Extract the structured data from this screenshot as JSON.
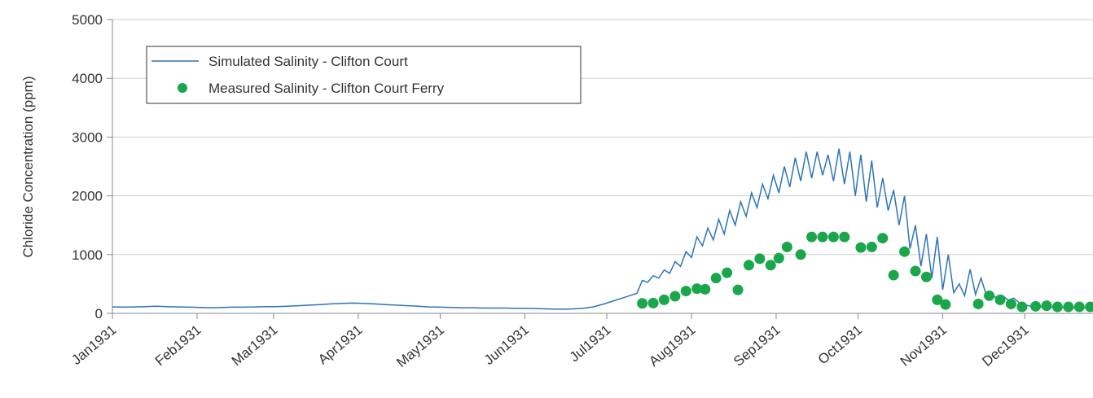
{
  "chart_data": {
    "type": "line",
    "y_label": "Chloride Concentration (ppm)",
    "xlim": [
      0,
      359
    ],
    "xticks": [
      {
        "value": 0,
        "label": "Jan1931"
      },
      {
        "value": 31,
        "label": "Feb1931"
      },
      {
        "value": 59,
        "label": "Mar1931"
      },
      {
        "value": 90,
        "label": "Apr1931"
      },
      {
        "value": 120,
        "label": "May1931"
      },
      {
        "value": 151,
        "label": "Jun1931"
      },
      {
        "value": 181,
        "label": "Jul1931"
      },
      {
        "value": 212,
        "label": "Aug1931"
      },
      {
        "value": 243,
        "label": "Sep1931"
      },
      {
        "value": 273,
        "label": "Oct1931"
      },
      {
        "value": 304,
        "label": "Nov1931"
      },
      {
        "value": 334,
        "label": "Dec1931"
      }
    ],
    "ylim": [
      0,
      5000
    ],
    "yticks": [
      0,
      1000,
      2000,
      3000,
      4000,
      5000
    ],
    "grid": true,
    "legend": "upper left",
    "series": [
      {
        "name": "Simulated Salinity - Clifton Court",
        "type": "line",
        "color": "#2e75b6",
        "x": [
          0,
          4,
          8,
          12,
          16,
          20,
          24,
          28,
          32,
          36,
          40,
          44,
          48,
          52,
          56,
          60,
          64,
          68,
          72,
          76,
          80,
          84,
          88,
          92,
          96,
          100,
          104,
          108,
          112,
          116,
          120,
          124,
          128,
          132,
          136,
          140,
          144,
          148,
          152,
          156,
          160,
          164,
          168,
          172,
          176,
          180,
          184,
          188,
          192,
          194,
          196,
          198,
          200,
          202,
          204,
          206,
          208,
          210,
          212,
          214,
          216,
          218,
          220,
          222,
          224,
          226,
          228,
          230,
          232,
          234,
          236,
          238,
          240,
          242,
          244,
          246,
          248,
          250,
          252,
          254,
          256,
          258,
          260,
          262,
          264,
          266,
          268,
          270,
          272,
          274,
          276,
          278,
          280,
          282,
          284,
          286,
          288,
          290,
          292,
          294,
          296,
          298,
          300,
          302,
          304,
          306,
          308,
          310,
          312,
          314,
          316,
          318,
          320,
          322,
          324,
          326,
          328,
          330,
          332,
          334,
          336,
          338,
          340,
          342,
          344,
          346,
          348,
          350,
          352,
          354,
          356,
          358
        ],
        "values": [
          110,
          105,
          110,
          115,
          120,
          115,
          110,
          105,
          100,
          95,
          100,
          105,
          105,
          110,
          115,
          115,
          120,
          130,
          140,
          150,
          160,
          170,
          175,
          170,
          160,
          150,
          140,
          130,
          120,
          110,
          105,
          100,
          95,
          95,
          90,
          90,
          90,
          85,
          85,
          80,
          75,
          70,
          75,
          85,
          110,
          160,
          220,
          280,
          340,
          560,
          530,
          640,
          600,
          740,
          680,
          880,
          800,
          1050,
          950,
          1300,
          1150,
          1450,
          1250,
          1600,
          1350,
          1750,
          1500,
          1900,
          1650,
          2050,
          1800,
          2200,
          1950,
          2350,
          2050,
          2500,
          2150,
          2650,
          2250,
          2750,
          2300,
          2750,
          2350,
          2700,
          2250,
          2800,
          2200,
          2750,
          2000,
          2700,
          1900,
          2600,
          1800,
          2300,
          1750,
          2100,
          1500,
          2000,
          1100,
          1500,
          800,
          1350,
          600,
          1300,
          400,
          1000,
          350,
          500,
          300,
          750,
          320,
          600,
          300,
          320,
          250,
          300,
          220,
          260,
          180,
          150,
          120,
          140,
          110,
          120,
          100,
          110,
          100,
          105,
          100,
          100,
          100,
          100
        ]
      },
      {
        "name": "Measured Salinity - Clifton Court Ferry",
        "type": "scatter",
        "color": "#1aa64a",
        "x": [
          194,
          198,
          202,
          206,
          210,
          214,
          217,
          221,
          225,
          229,
          233,
          237,
          241,
          244,
          247,
          252,
          256,
          260,
          264,
          268,
          274,
          278,
          282,
          286,
          290,
          294,
          298,
          302,
          305,
          317,
          321,
          325,
          329,
          333,
          338,
          342,
          346,
          350,
          354,
          358
        ],
        "values": [
          170,
          175,
          230,
          290,
          380,
          420,
          410,
          600,
          690,
          400,
          820,
          930,
          820,
          940,
          1130,
          1000,
          1300,
          1300,
          1300,
          1300,
          1120,
          1130,
          1280,
          650,
          1050,
          720,
          620,
          230,
          150,
          160,
          300,
          230,
          160,
          110,
          120,
          130,
          110,
          110,
          110,
          110
        ]
      }
    ]
  }
}
